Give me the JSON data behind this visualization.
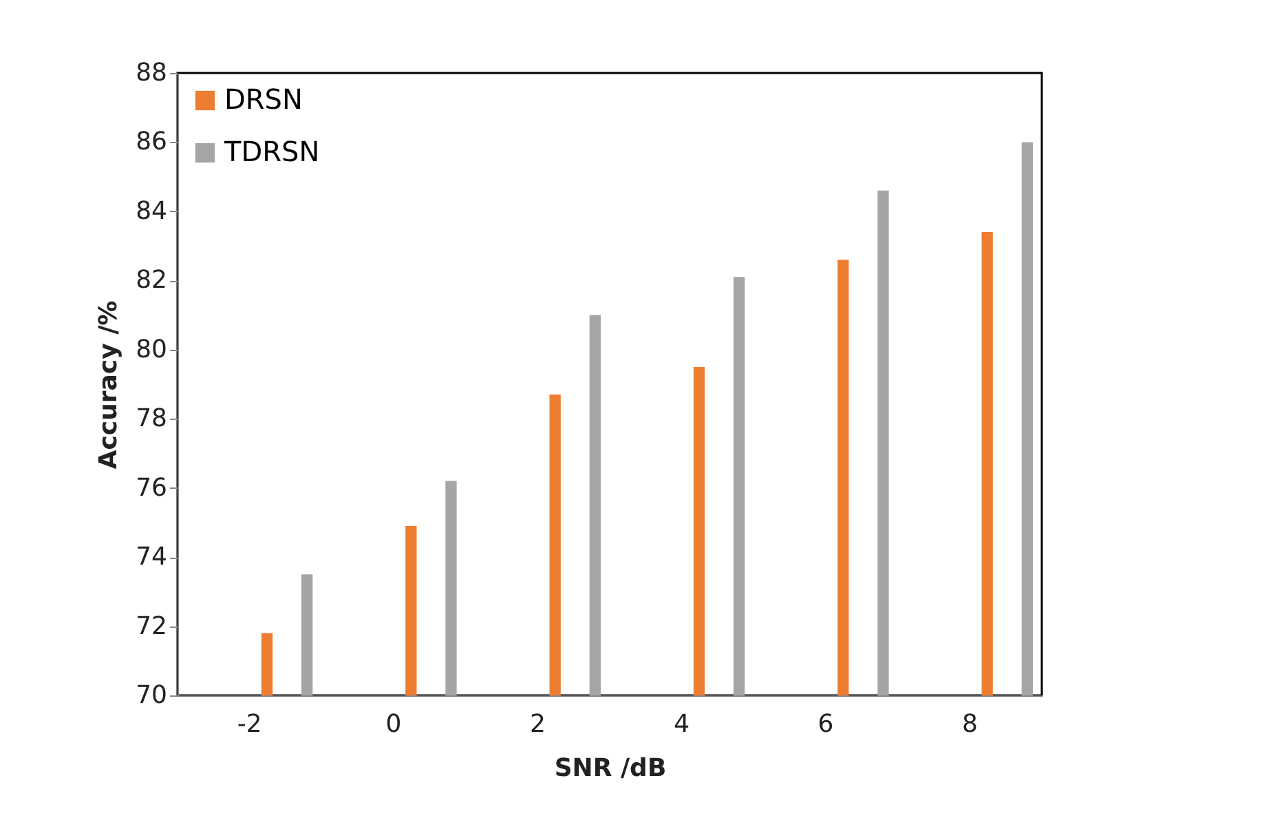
{
  "chart_data": {
    "type": "bar",
    "xlabel": "SNR /dB",
    "ylabel": "Accuracy /%",
    "categories": [
      "-2",
      "0",
      "2",
      "4",
      "6",
      "8"
    ],
    "series": [
      {
        "name": "DRSN",
        "color": "#ed7d31",
        "values": [
          71.8,
          74.9,
          78.7,
          79.5,
          82.6,
          83.4
        ]
      },
      {
        "name": "TDRSN",
        "color": "#a5a5a5",
        "values": [
          73.5,
          76.2,
          81.0,
          82.1,
          84.6,
          86.0
        ]
      }
    ],
    "ylim": [
      70,
      88
    ],
    "yticks": [
      70,
      72,
      74,
      76,
      78,
      80,
      82,
      84,
      86,
      88
    ],
    "grid": false,
    "legend": "top left"
  }
}
